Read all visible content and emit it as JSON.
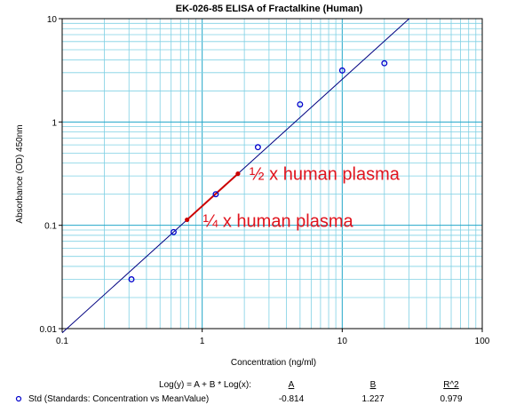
{
  "chart_data": {
    "type": "scatter",
    "title": "EK-026-85 ELISA of Fractalkine (Human)",
    "xlabel": "Concentration (ng/ml)",
    "ylabel": "Absorbance (OD) 450nm",
    "x_scale": "log",
    "y_scale": "log",
    "xlim": [
      0.1,
      100
    ],
    "ylim": [
      0.01,
      10
    ],
    "x_ticks": [
      "0.1",
      "1",
      "10",
      "100"
    ],
    "y_ticks": [
      "0.01",
      "0.1",
      "1",
      "10"
    ],
    "grid": true,
    "series": [
      {
        "name": "Std (Standards: Concentration vs MeanValue)",
        "marker": "open-circle",
        "color": "#0000cc",
        "x": [
          0.3125,
          0.625,
          1.25,
          2.5,
          5,
          10,
          20
        ],
        "y": [
          0.03,
          0.086,
          0.2,
          0.57,
          1.48,
          3.15,
          3.7
        ]
      }
    ],
    "fit": {
      "equation": "Log(y) = A + B * Log(x):",
      "A": -0.814,
      "B": 1.227,
      "R2": 0.979,
      "color": "#000080"
    },
    "annotations": [
      {
        "label": "½ x human plasma",
        "x_start": 1.25,
        "x_end": 1.8,
        "color": "#cc0000"
      },
      {
        "label": "¼ x human plasma",
        "x_start": 0.78,
        "x_end": 0.78,
        "color": "#cc0000"
      }
    ],
    "legend": {
      "placement": "bottom",
      "headers": {
        "A": "A",
        "B": "B",
        "R2": "R^2"
      },
      "values": {
        "A": "-0.814",
        "B": "1.227",
        "R2": "0.979"
      }
    }
  }
}
